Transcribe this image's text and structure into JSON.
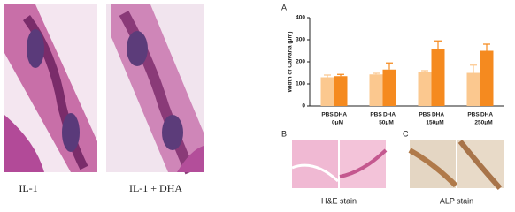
{
  "captions": [
    "IL-1",
    "IL-1 + DHA"
  ],
  "panels": {
    "a": "A",
    "b": "B",
    "c": "C"
  },
  "stains": {
    "he": "H&E stain",
    "alp": "ALP stain"
  },
  "chart_data": {
    "type": "bar",
    "ylabel": "Width of Calvaria (μm)",
    "categories": [
      "0μM",
      "50μM",
      "150μM",
      "250μM"
    ],
    "series": [
      {
        "name": "PBS",
        "color": "#fbc88f",
        "values": [
          130,
          143,
          155,
          150
        ],
        "errors": [
          10,
          5,
          5,
          35
        ]
      },
      {
        "name": "DHA",
        "color": "#f58a1f",
        "values": [
          135,
          165,
          260,
          250
        ],
        "errors": [
          8,
          30,
          35,
          30
        ]
      }
    ],
    "ylim": [
      0,
      400
    ],
    "yticks": [
      0,
      100,
      200,
      300,
      400
    ]
  }
}
